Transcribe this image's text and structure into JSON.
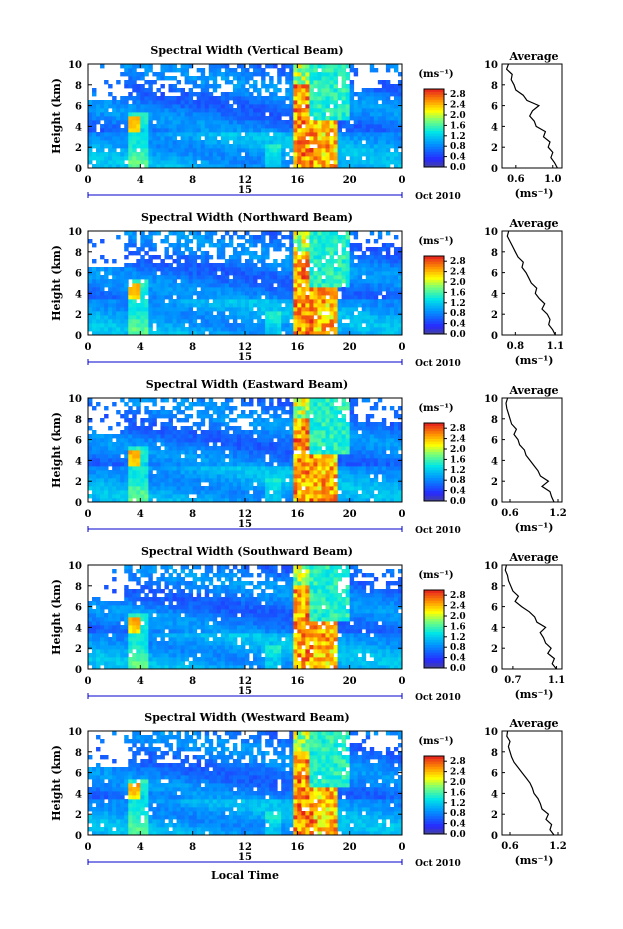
{
  "chart_data": [
    {
      "type": "heatmap",
      "title": "Spectral Width (Vertical Beam)",
      "xlabel": "",
      "ylabel": "Height (km)",
      "date_label": "15",
      "month_year": "Oct 2010",
      "xlim": [
        0,
        24
      ],
      "ylim": [
        0,
        10
      ],
      "xticks": [
        "0",
        "4",
        "8",
        "12",
        "16",
        "20",
        "0"
      ],
      "yticks": [
        "0",
        "2",
        "4",
        "6",
        "8",
        "10"
      ],
      "colorbar": {
        "unit": "(ms⁻¹)",
        "ticks": [
          "0.0",
          "0.4",
          "0.8",
          "1.2",
          "1.6",
          "2.0",
          "2.4",
          "2.8"
        ],
        "range": [
          0,
          3.0
        ]
      },
      "profile": {
        "title": "Average",
        "xlabel": "(ms⁻¹)",
        "xticks": [
          "0.6",
          "1.0"
        ],
        "xlim": [
          0.45,
          1.1
        ],
        "height": [
          0,
          0.5,
          1,
          1.5,
          2,
          2.5,
          3,
          3.5,
          4,
          4.5,
          5,
          5.5,
          6,
          6.5,
          7,
          7.5,
          8,
          8.5,
          9,
          9.5,
          10
        ],
        "width": [
          1.05,
          1.02,
          0.98,
          1.0,
          0.95,
          0.97,
          0.9,
          0.92,
          0.82,
          0.8,
          0.75,
          0.78,
          0.85,
          0.72,
          0.68,
          0.6,
          0.58,
          0.55,
          0.56,
          0.5,
          0.52
        ]
      }
    },
    {
      "type": "heatmap",
      "title": "Spectral Width (Northward Beam)",
      "xlabel": "",
      "ylabel": "Height (km)",
      "date_label": "15",
      "month_year": "Oct 2010",
      "xlim": [
        0,
        24
      ],
      "ylim": [
        0,
        10
      ],
      "xticks": [
        "0",
        "4",
        "8",
        "12",
        "16",
        "20",
        "0"
      ],
      "yticks": [
        "0",
        "2",
        "4",
        "6",
        "8",
        "10"
      ],
      "colorbar": {
        "unit": "(ms⁻¹)",
        "ticks": [
          "0.0",
          "0.4",
          "0.8",
          "1.2",
          "1.6",
          "2.0",
          "2.4",
          "2.8"
        ],
        "range": [
          0,
          3.0
        ]
      },
      "profile": {
        "title": "Average",
        "xlabel": "(ms⁻¹)",
        "xticks": [
          "0.8",
          "1.1"
        ],
        "xlim": [
          0.7,
          1.15
        ],
        "height": [
          0,
          0.5,
          1,
          1.5,
          2,
          2.5,
          3,
          3.5,
          4,
          4.5,
          5,
          5.5,
          6,
          6.5,
          7,
          7.5,
          8,
          8.5,
          9,
          9.5,
          10
        ],
        "width": [
          1.1,
          1.08,
          1.05,
          1.06,
          1.04,
          1.0,
          1.02,
          0.98,
          0.95,
          0.96,
          0.92,
          0.9,
          0.88,
          0.85,
          0.86,
          0.82,
          0.8,
          0.78,
          0.76,
          0.74,
          0.75
        ]
      }
    },
    {
      "type": "heatmap",
      "title": "Spectral Width (Eastward Beam)",
      "xlabel": "",
      "ylabel": "Height (km)",
      "date_label": "15",
      "month_year": "Oct 2010",
      "xlim": [
        0,
        24
      ],
      "ylim": [
        0,
        10
      ],
      "xticks": [
        "0",
        "4",
        "8",
        "12",
        "16",
        "20",
        "0"
      ],
      "yticks": [
        "0",
        "2",
        "4",
        "6",
        "8",
        "10"
      ],
      "colorbar": {
        "unit": "(ms⁻¹)",
        "ticks": [
          "0.0",
          "0.4",
          "0.8",
          "1.2",
          "1.6",
          "2.0",
          "2.4",
          "2.8"
        ],
        "range": [
          0,
          3.0
        ]
      },
      "profile": {
        "title": "Average",
        "xlabel": "(ms⁻¹)",
        "xticks": [
          "0.6",
          "1.2"
        ],
        "xlim": [
          0.5,
          1.25
        ],
        "height": [
          0,
          0.5,
          1,
          1.5,
          2,
          2.5,
          3,
          3.5,
          4,
          4.5,
          5,
          5.5,
          6,
          6.5,
          7,
          7.5,
          8,
          8.5,
          9,
          9.5,
          10
        ],
        "width": [
          1.15,
          1.12,
          1.1,
          1.0,
          1.08,
          0.98,
          0.95,
          0.9,
          0.85,
          0.8,
          0.78,
          0.72,
          0.7,
          0.65,
          0.68,
          0.62,
          0.6,
          0.58,
          0.56,
          0.55,
          0.57
        ]
      }
    },
    {
      "type": "heatmap",
      "title": "Spectral Width (Southward Beam)",
      "xlabel": "",
      "ylabel": "Height (km)",
      "date_label": "15",
      "month_year": "Oct 2010",
      "xlim": [
        0,
        24
      ],
      "ylim": [
        0,
        10
      ],
      "xticks": [
        "0",
        "4",
        "8",
        "12",
        "16",
        "20",
        "0"
      ],
      "yticks": [
        "0",
        "2",
        "4",
        "6",
        "8",
        "10"
      ],
      "colorbar": {
        "unit": "(ms⁻¹)",
        "ticks": [
          "0.0",
          "0.4",
          "0.8",
          "1.2",
          "1.6",
          "2.0",
          "2.4",
          "2.8"
        ],
        "range": [
          0,
          3.0
        ]
      },
      "profile": {
        "title": "Average",
        "xlabel": "(ms⁻¹)",
        "xticks": [
          "0.7",
          "1.1"
        ],
        "xlim": [
          0.6,
          1.15
        ],
        "height": [
          0,
          0.5,
          1,
          1.5,
          2,
          2.5,
          3,
          3.5,
          4,
          4.5,
          5,
          5.5,
          6,
          6.5,
          7,
          7.5,
          8,
          8.5,
          9,
          9.5,
          10
        ],
        "width": [
          1.1,
          1.06,
          1.08,
          1.02,
          1.05,
          1.0,
          0.98,
          0.95,
          1.0,
          0.92,
          0.9,
          0.85,
          0.78,
          0.72,
          0.75,
          0.7,
          0.68,
          0.66,
          0.65,
          0.63,
          0.64
        ]
      }
    },
    {
      "type": "heatmap",
      "title": "Spectral Width (Westward Beam)",
      "xlabel": "Local Time",
      "ylabel": "Height (km)",
      "date_label": "15",
      "month_year": "Oct 2010",
      "xlim": [
        0,
        24
      ],
      "ylim": [
        0,
        10
      ],
      "xticks": [
        "0",
        "4",
        "8",
        "12",
        "16",
        "20",
        "0"
      ],
      "yticks": [
        "0",
        "2",
        "4",
        "6",
        "8",
        "10"
      ],
      "colorbar": {
        "unit": "(ms⁻¹)",
        "ticks": [
          "0.0",
          "0.4",
          "0.8",
          "1.2",
          "1.6",
          "2.0",
          "2.4",
          "2.8"
        ],
        "range": [
          0,
          3.0
        ]
      },
      "profile": {
        "title": "Average",
        "xlabel": "(ms⁻¹)",
        "xticks": [
          "0.6",
          "1.2"
        ],
        "xlim": [
          0.5,
          1.25
        ],
        "height": [
          0,
          0.5,
          1,
          1.5,
          2,
          2.5,
          3,
          3.5,
          4,
          4.5,
          5,
          5.5,
          6,
          6.5,
          7,
          7.5,
          8,
          8.5,
          9,
          9.5,
          10
        ],
        "width": [
          1.15,
          1.1,
          1.12,
          1.05,
          1.08,
          1.0,
          0.98,
          0.95,
          0.9,
          0.88,
          0.85,
          0.8,
          0.75,
          0.7,
          0.65,
          0.62,
          0.6,
          0.58,
          0.6,
          0.56,
          0.57
        ]
      }
    }
  ]
}
